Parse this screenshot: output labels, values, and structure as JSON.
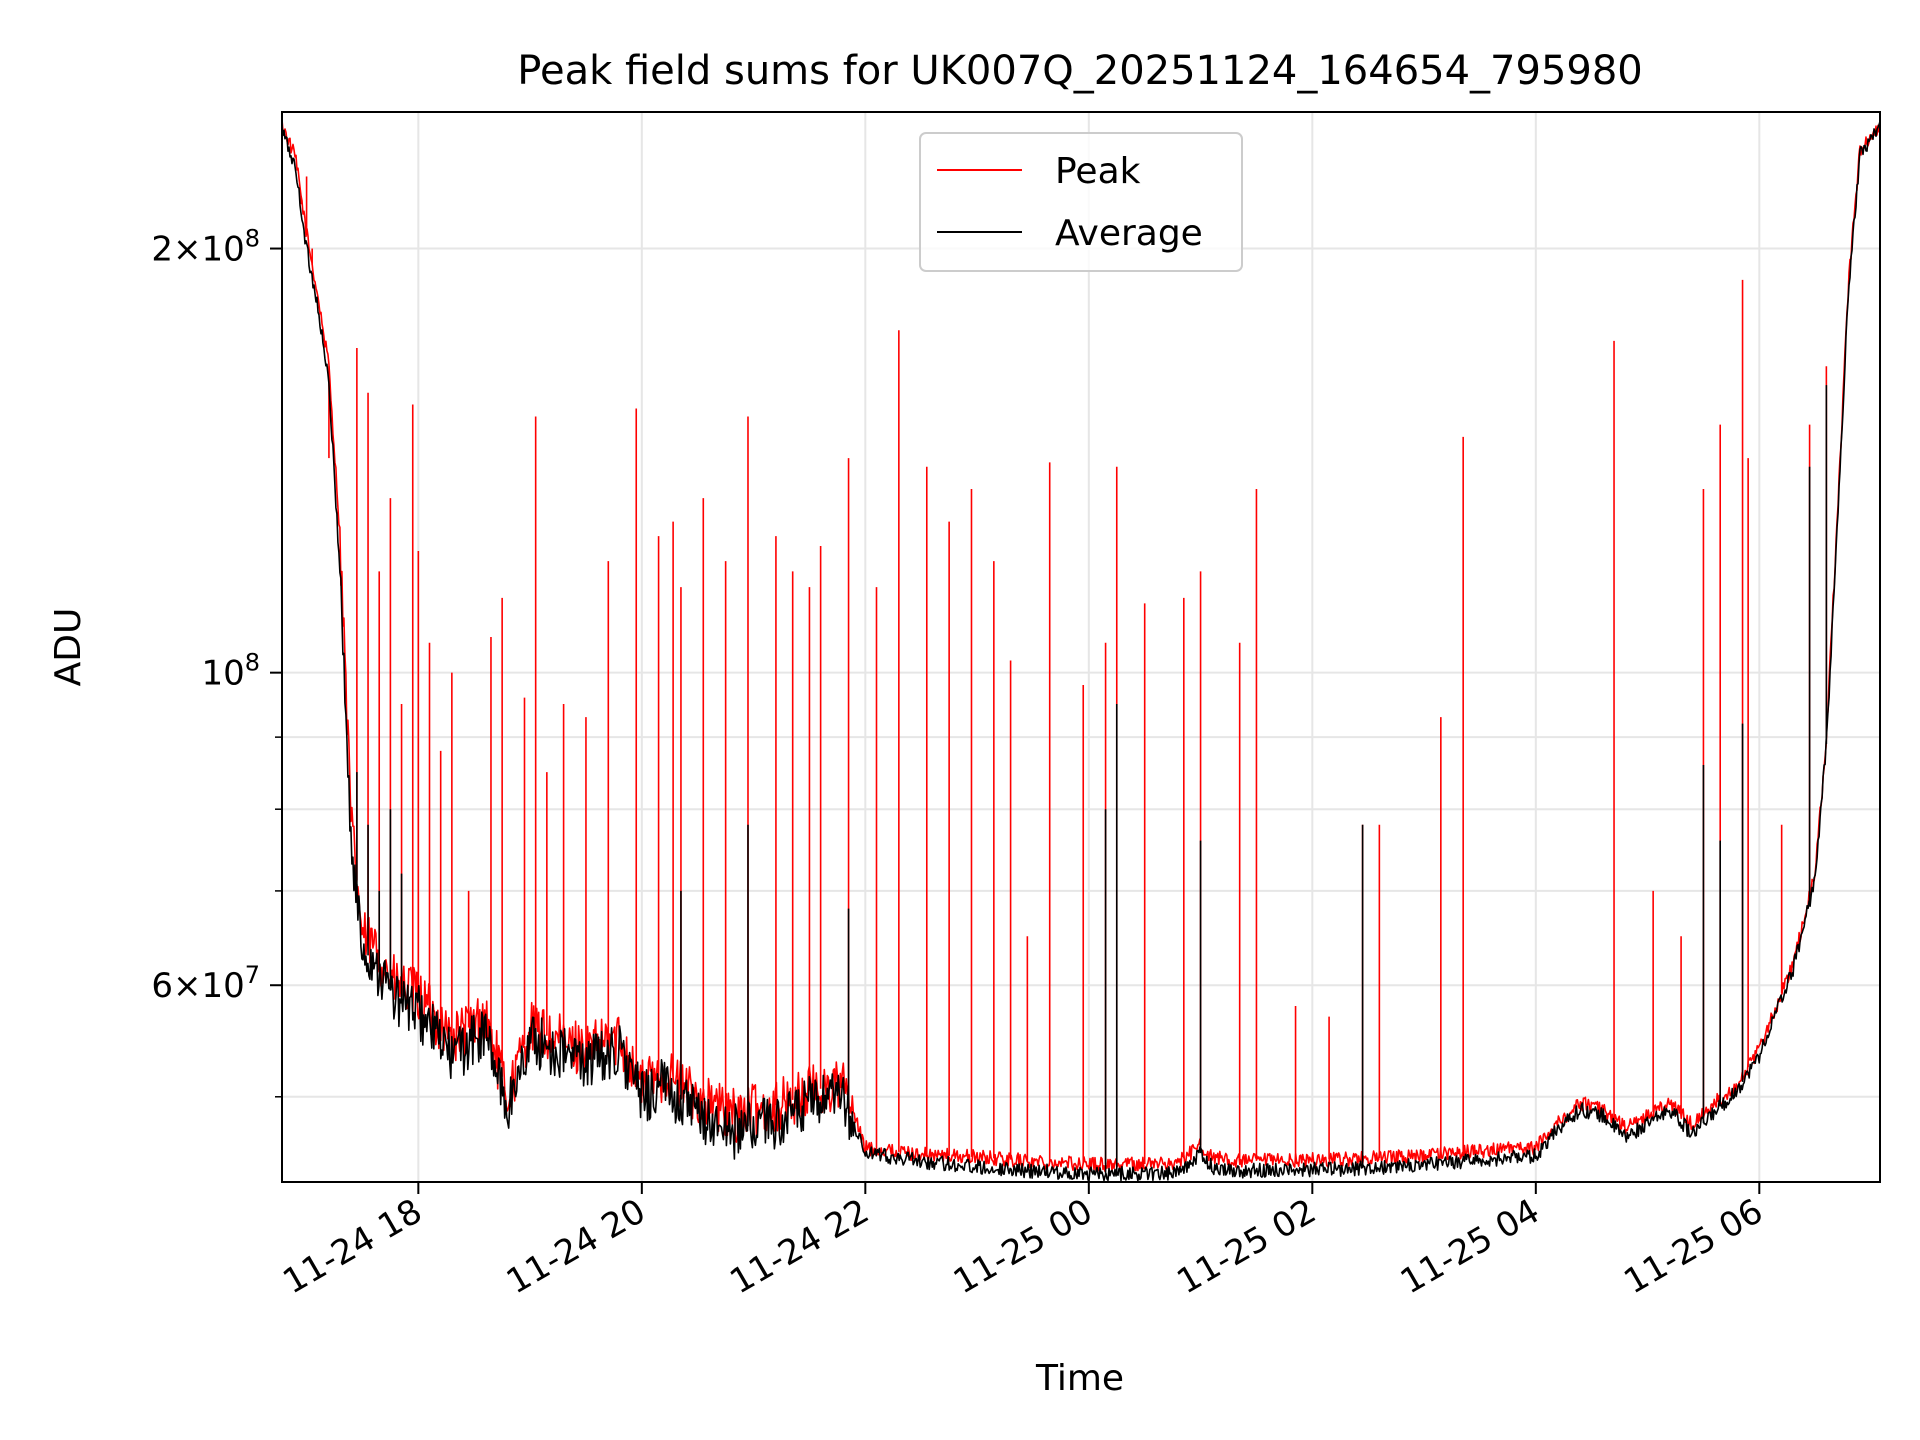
{
  "chart_data": {
    "type": "line",
    "title": "Peak field sums for UK007Q_20251124_164654_795980",
    "xlabel": "Time",
    "ylabel": "ADU",
    "yscale": "log",
    "ylim": [
      43500000,
      250000000
    ],
    "xlim_hours": [
      16.78,
      31.08
    ],
    "grid": true,
    "legend_location": "upper center",
    "x_ticks": [
      {
        "hour": 18,
        "label": "11-24 18"
      },
      {
        "hour": 20,
        "label": "11-24 20"
      },
      {
        "hour": 22,
        "label": "11-24 22"
      },
      {
        "hour": 24,
        "label": "11-25 00"
      },
      {
        "hour": 26,
        "label": "11-25 02"
      },
      {
        "hour": 28,
        "label": "11-25 04"
      },
      {
        "hour": 30,
        "label": "11-25 06"
      }
    ],
    "y_ticks": [
      {
        "value": 60000000,
        "mantissa": "6",
        "exponent": "7"
      },
      {
        "value": 100000000,
        "mantissa": "",
        "exponent": "8"
      },
      {
        "value": 200000000,
        "mantissa": "2",
        "exponent": "8"
      }
    ],
    "y_minor_ticks": [
      50000000,
      70000000,
      80000000,
      90000000
    ],
    "series": [
      {
        "name": "Peak",
        "color": "#ff0000",
        "baseline_hours": [
          16.78,
          16.9,
          17.0,
          17.1,
          17.2,
          17.3,
          17.4,
          17.5,
          17.6,
          17.8,
          18.0,
          18.3,
          18.6,
          18.8,
          19.0,
          19.2,
          19.5,
          19.8,
          20.0,
          20.2,
          20.5,
          20.8,
          21.0,
          21.3,
          21.5,
          21.8,
          22.0,
          22.5,
          23.0,
          23.5,
          24.0,
          24.5,
          24.8,
          25.0,
          25.1,
          25.3,
          26.0,
          26.5,
          27.0,
          27.5,
          28.0,
          28.2,
          28.4,
          28.6,
          28.8,
          29.0,
          29.2,
          29.4,
          29.6,
          29.8,
          30.0,
          30.3,
          30.5,
          30.6,
          30.7,
          30.8,
          30.9,
          31.08
        ],
        "baseline_values": [
          245000000,
          232000000,
          205000000,
          185000000,
          165000000,
          125000000,
          78000000,
          65000000,
          64000000,
          60000000,
          59000000,
          55000000,
          57000000,
          50000000,
          56000000,
          55000000,
          54000000,
          55000000,
          51000000,
          52000000,
          50000000,
          48500000,
          49000000,
          49500000,
          50500000,
          51000000,
          46000000,
          45500000,
          45300000,
          45000000,
          44800000,
          44800000,
          44900000,
          46200000,
          45300000,
          45000000,
          45100000,
          45200000,
          45400000,
          45800000,
          46000000,
          48000000,
          49500000,
          49000000,
          47500000,
          48500000,
          49500000,
          47800000,
          49500000,
          51000000,
          54000000,
          62000000,
          72000000,
          90000000,
          130000000,
          190000000,
          235000000,
          245000000
        ],
        "spike_hours": [
          16.95,
          17.0,
          17.05,
          17.2,
          17.45,
          17.55,
          17.65,
          17.75,
          17.85,
          17.95,
          18.0,
          18.1,
          18.2,
          18.3,
          18.45,
          18.65,
          18.75,
          18.95,
          19.05,
          19.15,
          19.3,
          19.5,
          19.7,
          19.95,
          20.15,
          20.28,
          20.35,
          20.55,
          20.75,
          20.95,
          21.2,
          21.35,
          21.5,
          21.6,
          21.85,
          22.1,
          22.3,
          22.55,
          22.75,
          22.95,
          23.15,
          23.3,
          23.45,
          23.65,
          23.95,
          24.15,
          24.25,
          24.5,
          24.85,
          25.0,
          25.35,
          25.5,
          25.85,
          26.15,
          26.45,
          26.6,
          27.15,
          27.35,
          28.7,
          29.05,
          29.3,
          29.5,
          29.65,
          29.85,
          29.9,
          30.2,
          30.45,
          30.6
        ],
        "spike_values": [
          215000000,
          225000000,
          200000000,
          142000000,
          170000000,
          158000000,
          118000000,
          133000000,
          95000000,
          155000000,
          122000000,
          105000000,
          88000000,
          100000000,
          70000000,
          106000000,
          113000000,
          96000000,
          152000000,
          85000000,
          95000000,
          93000000,
          120000000,
          154000000,
          125000000,
          128000000,
          115000000,
          133000000,
          120000000,
          152000000,
          125000000,
          118000000,
          115000000,
          123000000,
          142000000,
          115000000,
          175000000,
          140000000,
          128000000,
          135000000,
          120000000,
          102000000,
          65000000,
          141000000,
          98000000,
          105000000,
          140000000,
          112000000,
          113000000,
          118000000,
          105000000,
          135000000,
          58000000,
          57000000,
          78000000,
          78000000,
          93000000,
          147000000,
          172000000,
          70000000,
          65000000,
          135000000,
          150000000,
          190000000,
          142000000,
          78000000,
          150000000,
          165000000
        ]
      },
      {
        "name": "Average",
        "color": "#000000",
        "baseline_hours": [
          16.78,
          16.9,
          17.0,
          17.1,
          17.2,
          17.3,
          17.4,
          17.5,
          17.6,
          17.8,
          18.0,
          18.3,
          18.6,
          18.8,
          19.0,
          19.2,
          19.5,
          19.8,
          20.0,
          20.2,
          20.5,
          20.8,
          21.0,
          21.3,
          21.5,
          21.8,
          22.0,
          22.5,
          23.0,
          23.5,
          24.0,
          24.5,
          24.8,
          25.0,
          25.1,
          25.3,
          26.0,
          26.5,
          27.0,
          27.5,
          28.0,
          28.2,
          28.4,
          28.6,
          28.8,
          29.0,
          29.2,
          29.4,
          29.6,
          29.8,
          30.0,
          30.3,
          30.5,
          30.6,
          30.7,
          30.8,
          30.9,
          31.08
        ],
        "baseline_values": [
          243000000,
          228000000,
          200000000,
          182000000,
          160000000,
          118000000,
          75000000,
          63500000,
          62500000,
          58500000,
          57500000,
          53500000,
          55500000,
          49000000,
          55000000,
          54000000,
          53000000,
          54000000,
          50000000,
          51000000,
          48500000,
          47200000,
          47800000,
          48200000,
          49500000,
          49800000,
          45600000,
          45000000,
          44600000,
          44300000,
          44100000,
          44100000,
          44200000,
          45600000,
          44600000,
          44300000,
          44400000,
          44500000,
          44700000,
          45100000,
          45400000,
          47500000,
          49000000,
          48500000,
          46800000,
          47800000,
          49000000,
          47000000,
          48800000,
          50500000,
          53500000,
          61500000,
          71500000,
          89000000,
          128000000,
          188000000,
          233000000,
          245000000
        ],
        "spike_hours": [
          17.45,
          17.55,
          17.65,
          17.75,
          17.85,
          20.35,
          20.95,
          21.85,
          24.15,
          24.25,
          25.0,
          26.45,
          29.5,
          29.65,
          29.85,
          30.45,
          30.6
        ],
        "spike_values": [
          85000000,
          78000000,
          70000000,
          80000000,
          72000000,
          70000000,
          78000000,
          68000000,
          80000000,
          95000000,
          76000000,
          78000000,
          86000000,
          76000000,
          92000000,
          140000000,
          160000000
        ]
      }
    ]
  }
}
